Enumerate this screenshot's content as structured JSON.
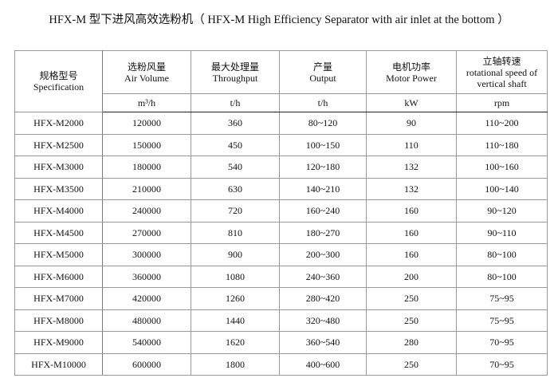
{
  "title": "HFX-M 型下进风高效选粉机（ HFX-M High Efficiency Separator with air inlet at the bottom ）",
  "headers": [
    {
      "zh": "规格型号",
      "en": "Specification",
      "unit": ""
    },
    {
      "zh": "选粉风量",
      "en": "Air Volume",
      "unit": "m³/h"
    },
    {
      "zh": "最大处理量",
      "en": "Throughput",
      "unit": "t/h"
    },
    {
      "zh": "产量",
      "en": "Output",
      "unit": "t/h"
    },
    {
      "zh": "电机功率",
      "en": "Motor Power",
      "unit": "kW"
    },
    {
      "zh": "立轴转速",
      "en": "rotational speed of vertical shaft",
      "unit": "rpm"
    }
  ],
  "rows": [
    [
      "HFX-M2000",
      "120000",
      "360",
      "80~120",
      "90",
      "110~200"
    ],
    [
      "HFX-M2500",
      "150000",
      "450",
      "100~150",
      "110",
      "110~180"
    ],
    [
      "HFX-M3000",
      "180000",
      "540",
      "120~180",
      "132",
      "100~160"
    ],
    [
      "HFX-M3500",
      "210000",
      "630",
      "140~210",
      "132",
      "100~140"
    ],
    [
      "HFX-M4000",
      "240000",
      "720",
      "160~240",
      "160",
      "90~120"
    ],
    [
      "HFX-M4500",
      "270000",
      "810",
      "180~270",
      "160",
      "90~110"
    ],
    [
      "HFX-M5000",
      "300000",
      "900",
      "200~300",
      "160",
      "80~100"
    ],
    [
      "HFX-M6000",
      "360000",
      "1080",
      "240~360",
      "200",
      "80~100"
    ],
    [
      "HFX-M7000",
      "420000",
      "1260",
      "280~420",
      "250",
      "75~95"
    ],
    [
      "HFX-M8000",
      "480000",
      "1440",
      "320~480",
      "250",
      "75~95"
    ],
    [
      "HFX-M9000",
      "540000",
      "1620",
      "360~540",
      "280",
      "70~95"
    ],
    [
      "HFX-M10000",
      "600000",
      "1800",
      "400~600",
      "250",
      "70~95"
    ]
  ]
}
